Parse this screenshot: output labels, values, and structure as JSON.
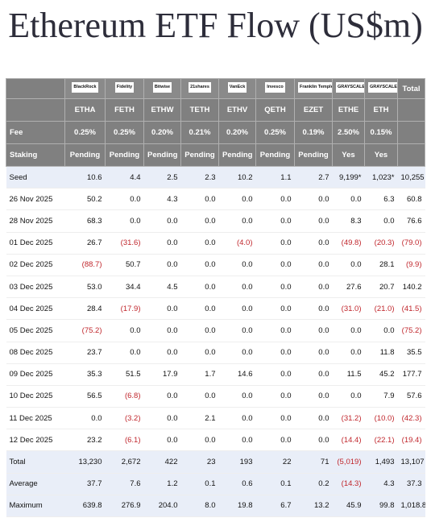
{
  "title": "Ethereum ETF Flow (US$m)",
  "header": {
    "logos": [
      "BlackRock",
      "Fidelity",
      "Bitwise",
      "21shares",
      "VanEck",
      "Invesco",
      "Franklin Templeton",
      "GRAYSCALE",
      "GRAYSCALE"
    ],
    "total_label": "Total",
    "tickers": [
      "ETHA",
      "FETH",
      "ETHW",
      "TETH",
      "ETHV",
      "QETH",
      "EZET",
      "ETHE",
      "ETH"
    ],
    "fee": {
      "label": "Fee",
      "values": [
        "0.25%",
        "0.25%",
        "0.20%",
        "0.21%",
        "0.20%",
        "0.25%",
        "0.19%",
        "2.50%",
        "0.15%"
      ]
    },
    "staking": {
      "label": "Staking",
      "values": [
        "Pending",
        "Pending",
        "Pending",
        "Pending",
        "Pending",
        "Pending",
        "Pending",
        "Yes",
        "Yes"
      ]
    }
  },
  "table": {
    "rows": [
      [
        "Seed",
        "10.6",
        "4.4",
        "2.5",
        "2.3",
        "10.2",
        "1.1",
        "2.7",
        "9,199*",
        "1,023*",
        "10,255"
      ],
      [
        "26 Nov 2025",
        "50.2",
        "0.0",
        "4.3",
        "0.0",
        "0.0",
        "0.0",
        "0.0",
        "0.0",
        "6.3",
        "60.8"
      ],
      [
        "28 Nov 2025",
        "68.3",
        "0.0",
        "0.0",
        "0.0",
        "0.0",
        "0.0",
        "0.0",
        "8.3",
        "0.0",
        "76.6"
      ],
      [
        "01 Dec 2025",
        "26.7",
        "(31.6)",
        "0.0",
        "0.0",
        "(4.0)",
        "0.0",
        "0.0",
        "(49.8)",
        "(20.3)",
        "(79.0)"
      ],
      [
        "02 Dec 2025",
        "(88.7)",
        "50.7",
        "0.0",
        "0.0",
        "0.0",
        "0.0",
        "0.0",
        "0.0",
        "28.1",
        "(9.9)"
      ],
      [
        "03 Dec 2025",
        "53.0",
        "34.4",
        "4.5",
        "0.0",
        "0.0",
        "0.0",
        "0.0",
        "27.6",
        "20.7",
        "140.2"
      ],
      [
        "04 Dec 2025",
        "28.4",
        "(17.9)",
        "0.0",
        "0.0",
        "0.0",
        "0.0",
        "0.0",
        "(31.0)",
        "(21.0)",
        "(41.5)"
      ],
      [
        "05 Dec 2025",
        "(75.2)",
        "0.0",
        "0.0",
        "0.0",
        "0.0",
        "0.0",
        "0.0",
        "0.0",
        "0.0",
        "(75.2)"
      ],
      [
        "08 Dec 2025",
        "23.7",
        "0.0",
        "0.0",
        "0.0",
        "0.0",
        "0.0",
        "0.0",
        "0.0",
        "11.8",
        "35.5"
      ],
      [
        "09 Dec 2025",
        "35.3",
        "51.5",
        "17.9",
        "1.7",
        "14.6",
        "0.0",
        "0.0",
        "11.5",
        "45.2",
        "177.7"
      ],
      [
        "10 Dec 2025",
        "56.5",
        "(6.8)",
        "0.0",
        "0.0",
        "0.0",
        "0.0",
        "0.0",
        "0.0",
        "7.9",
        "57.6"
      ],
      [
        "11 Dec 2025",
        "0.0",
        "(3.2)",
        "0.0",
        "2.1",
        "0.0",
        "0.0",
        "0.0",
        "(31.2)",
        "(10.0)",
        "(42.3)"
      ],
      [
        "12 Dec 2025",
        "23.2",
        "(6.1)",
        "0.0",
        "0.0",
        "0.0",
        "0.0",
        "0.0",
        "(14.4)",
        "(22.1)",
        "(19.4)"
      ],
      [
        "Total",
        "13,230",
        "2,672",
        "422",
        "23",
        "193",
        "22",
        "71",
        "(5,019)",
        "1,493",
        "13,107"
      ],
      [
        "Average",
        "37.7",
        "7.6",
        "1.2",
        "0.1",
        "0.6",
        "0.1",
        "0.2",
        "(14.3)",
        "4.3",
        "37.3"
      ],
      [
        "Maximum",
        "639.8",
        "276.9",
        "204.0",
        "8.0",
        "19.8",
        "6.7",
        "13.2",
        "45.9",
        "99.8",
        "1,018.8"
      ]
    ]
  }
}
